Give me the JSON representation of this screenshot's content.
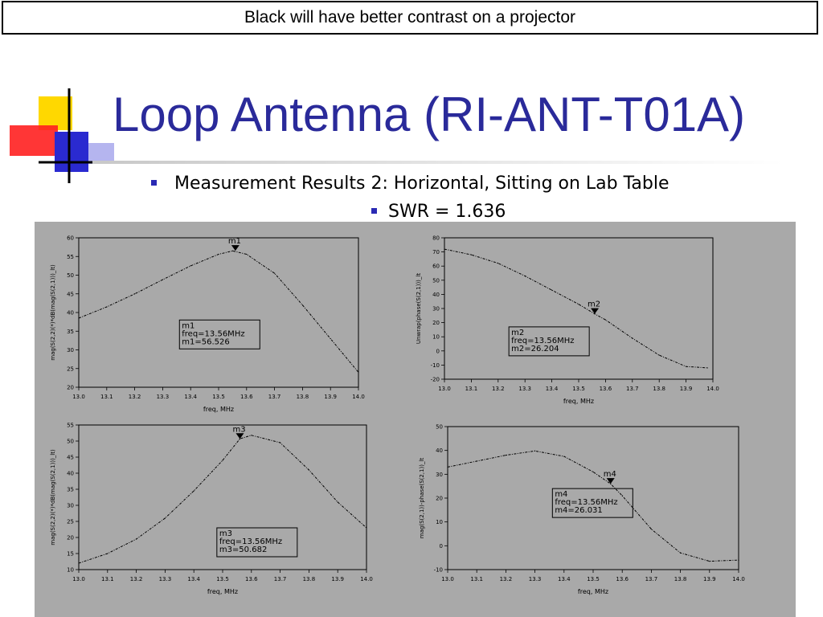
{
  "banner": {
    "text": "Black will have better contrast on a projector"
  },
  "slide": {
    "title": "Loop Antenna (RI-ANT-T01A)",
    "bullet1": "Measurement Results 2:  Horizontal, Sitting on Lab Table",
    "bullet2": "SWR = 1.636"
  },
  "colors": {
    "title": "#2a2a9a",
    "panel_bg": "#a9a9a9",
    "bullet": "#2a2ab4",
    "logo_yellow": "#ffd800",
    "logo_red": "#ff2020",
    "logo_blue": "#2a2ad0"
  },
  "chart_data": [
    {
      "type": "line",
      "xlabel": "freq, MHz",
      "ylabel": "mag(S(2,2)(*)*dB(mag(S(2,1)))_lt)",
      "xlim": [
        13.0,
        14.0
      ],
      "ylim": [
        20,
        60
      ],
      "xticks": [
        "13.0",
        "13.1",
        "13.2",
        "13.3",
        "13.4",
        "13.5",
        "13.6",
        "13.7",
        "13.8",
        "13.9",
        "14.0"
      ],
      "yticks": [
        "20",
        "25",
        "30",
        "35",
        "40",
        "45",
        "50",
        "55",
        "60"
      ],
      "series": [
        {
          "x": [
            13.0,
            13.1,
            13.2,
            13.3,
            13.4,
            13.5,
            13.55,
            13.6,
            13.7,
            13.8,
            13.9,
            14.0
          ],
          "y": [
            38.5,
            41.5,
            45.0,
            48.8,
            52.5,
            55.6,
            56.5,
            55.6,
            50.5,
            42.0,
            33.0,
            24.0
          ]
        }
      ],
      "marker": {
        "name": "m1",
        "x": 13.56,
        "y": 56.526,
        "lines": [
          "m1",
          "freq=13.56MHz",
          "m1=56.526"
        ]
      },
      "legend_box": {
        "x": 13.36,
        "y": 38
      }
    },
    {
      "type": "line",
      "xlabel": "freq, MHz",
      "ylabel": "Unwrap(phase(S(2,1)))_lt",
      "xlim": [
        13.0,
        14.0
      ],
      "ylim": [
        -20,
        80
      ],
      "xticks": [
        "13.0",
        "13.1",
        "13.2",
        "13.3",
        "13.4",
        "13.5",
        "13.6",
        "13.7",
        "13.8",
        "13.9",
        "14.0"
      ],
      "yticks": [
        "-20",
        "-10",
        "0",
        "10",
        "20",
        "30",
        "40",
        "50",
        "60",
        "70",
        "80"
      ],
      "series": [
        {
          "x": [
            13.0,
            13.1,
            13.2,
            13.3,
            13.4,
            13.5,
            13.56,
            13.6,
            13.7,
            13.8,
            13.9,
            13.98
          ],
          "y": [
            72,
            68,
            62,
            53,
            43,
            33,
            26.2,
            22,
            9,
            -3,
            -11,
            -12
          ]
        }
      ],
      "marker": {
        "name": "m2",
        "x": 13.56,
        "y": 26.204,
        "lines": [
          "m2",
          "freq=13.56MHz",
          "m2=26.204"
        ]
      },
      "legend_box": {
        "x": 13.24,
        "y": 17
      }
    },
    {
      "type": "line",
      "xlabel": "freq, MHz",
      "ylabel": "mag(S(2,2)(*)*dB(mag(S(2,1)))_lt)",
      "xlim": [
        13.0,
        14.0
      ],
      "ylim": [
        10,
        55
      ],
      "xticks": [
        "13.0",
        "13.1",
        "13.2",
        "13.3",
        "13.4",
        "13.5",
        "13.6",
        "13.7",
        "13.8",
        "13.9",
        "14.0"
      ],
      "yticks": [
        "10",
        "15",
        "20",
        "25",
        "30",
        "35",
        "40",
        "45",
        "50",
        "55"
      ],
      "series": [
        {
          "x": [
            13.0,
            13.1,
            13.2,
            13.3,
            13.4,
            13.5,
            13.56,
            13.6,
            13.7,
            13.8,
            13.9,
            14.0
          ],
          "y": [
            12.0,
            15.0,
            19.5,
            26.0,
            34.5,
            44.0,
            50.7,
            51.8,
            49.5,
            41.0,
            31.0,
            23.0
          ]
        }
      ],
      "marker": {
        "name": "m3",
        "x": 13.56,
        "y": 50.682,
        "lines": [
          "m3",
          "freq=13.56MHz",
          "m3=50.682"
        ]
      },
      "legend_box": {
        "x": 13.48,
        "y": 23
      }
    },
    {
      "type": "line",
      "xlabel": "freq, MHz",
      "ylabel": "mag(S(2,1))-phase(S(2,1))_lt",
      "xlim": [
        13.0,
        14.0
      ],
      "ylim": [
        -10,
        50
      ],
      "xticks": [
        "13.0",
        "13.1",
        "13.2",
        "13.3",
        "13.4",
        "13.5",
        "13.6",
        "13.7",
        "13.8",
        "13.9",
        "14.0"
      ],
      "yticks": [
        "-10",
        "0",
        "10",
        "20",
        "30",
        "40",
        "50"
      ],
      "series": [
        {
          "x": [
            13.0,
            13.1,
            13.2,
            13.3,
            13.4,
            13.5,
            13.56,
            13.6,
            13.7,
            13.8,
            13.9,
            14.0
          ],
          "y": [
            33.0,
            35.5,
            38.0,
            39.8,
            37.5,
            31.0,
            26.0,
            21.0,
            7.0,
            -3.0,
            -6.5,
            -6.0
          ]
        }
      ],
      "marker": {
        "name": "m4",
        "x": 13.56,
        "y": 26.031,
        "lines": [
          "m4",
          "freq=13.56MHz",
          "m4=26.031"
        ]
      },
      "legend_box": {
        "x": 13.36,
        "y": 24
      }
    }
  ]
}
